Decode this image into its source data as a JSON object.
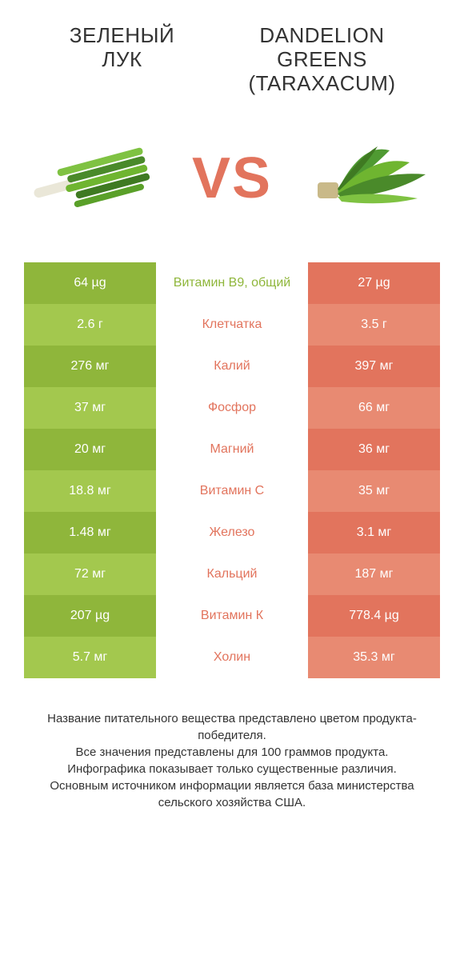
{
  "colors": {
    "left_primary": "#8fb63b",
    "left_alt": "#a3c84e",
    "right_primary": "#e2745d",
    "right_alt": "#e88a72",
    "vs": "#e2745d",
    "mid_text_left": "#8fb63b",
    "mid_text_right": "#e2745d",
    "body_text": "#333333",
    "background": "#ffffff"
  },
  "titles": {
    "left_line1": "Зеленый",
    "left_line2": "лук",
    "right_line1": "Dandelion",
    "right_line2": "greens",
    "right_line3": "(Taraxacum)"
  },
  "vs_label": "VS",
  "nutrient_rows": [
    {
      "label": "Витамин B9, общий",
      "left": "64 µg",
      "right": "27 µg",
      "winner": "left"
    },
    {
      "label": "Клетчатка",
      "left": "2.6 г",
      "right": "3.5 г",
      "winner": "right"
    },
    {
      "label": "Калий",
      "left": "276 мг",
      "right": "397 мг",
      "winner": "right"
    },
    {
      "label": "Фосфор",
      "left": "37 мг",
      "right": "66 мг",
      "winner": "right"
    },
    {
      "label": "Магний",
      "left": "20 мг",
      "right": "36 мг",
      "winner": "right"
    },
    {
      "label": "Витамин C",
      "left": "18.8 мг",
      "right": "35 мг",
      "winner": "right"
    },
    {
      "label": "Железо",
      "left": "1.48 мг",
      "right": "3.1 мг",
      "winner": "right"
    },
    {
      "label": "Кальций",
      "left": "72 мг",
      "right": "187 мг",
      "winner": "right"
    },
    {
      "label": "Витамин К",
      "left": "207 µg",
      "right": "778.4 µg",
      "winner": "right"
    },
    {
      "label": "Холин",
      "left": "5.7 мг",
      "right": "35.3 мг",
      "winner": "right"
    }
  ],
  "footer_lines": [
    "Название питательного вещества представлено цветом продукта-победителя.",
    "Все значения представлены для 100 граммов продукта.",
    "Инфографика показывает только существенные различия.",
    "Основным источником информации является база министерства сельского хозяйства США."
  ]
}
